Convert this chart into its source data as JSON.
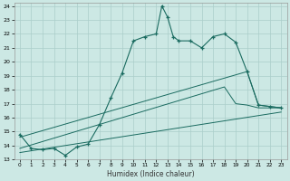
{
  "xlabel": "Humidex (Indice chaleur)",
  "bg_color": "#cce8e4",
  "grid_color": "#aaceca",
  "line_color": "#1a6b60",
  "xlim": [
    -0.5,
    23.5
  ],
  "ylim": [
    13,
    24.2
  ],
  "xtick_labels": [
    "0",
    "1",
    "2",
    "3",
    "4",
    "5",
    "6",
    "7",
    "8",
    "9",
    "10",
    "11",
    "12",
    "13",
    "14",
    "15",
    "16",
    "17",
    "18",
    "19",
    "20",
    "21",
    "22",
    "23"
  ],
  "xtick_vals": [
    0,
    1,
    2,
    3,
    4,
    5,
    6,
    7,
    8,
    9,
    10,
    11,
    12,
    13,
    14,
    15,
    16,
    17,
    18,
    19,
    20,
    21,
    22,
    23
  ],
  "ytick_vals": [
    13,
    14,
    15,
    16,
    17,
    18,
    19,
    20,
    21,
    22,
    23,
    24
  ],
  "curve_x": [
    0,
    1,
    2,
    3,
    4,
    5,
    6,
    7,
    8,
    9,
    10,
    11,
    12,
    12.5,
    13,
    13.5,
    14,
    15,
    16,
    17,
    18,
    19,
    20,
    21,
    22,
    23
  ],
  "curve_y": [
    14.8,
    13.8,
    13.7,
    13.8,
    13.3,
    13.9,
    14.1,
    15.5,
    17.4,
    19.2,
    21.5,
    21.8,
    22.0,
    24.0,
    23.2,
    21.8,
    21.5,
    21.5,
    21.0,
    21.8,
    22.0,
    21.4,
    19.3,
    16.9,
    16.8,
    16.7
  ],
  "curve_markers_x": [
    0,
    1,
    2,
    3,
    4,
    5,
    6,
    7,
    8,
    9,
    10,
    11,
    12,
    12.5,
    13,
    13.5,
    14,
    15,
    16,
    17,
    18,
    19,
    20,
    21,
    22,
    23
  ],
  "curve_markers_y": [
    14.8,
    13.8,
    13.7,
    13.8,
    13.3,
    13.9,
    14.1,
    15.5,
    17.4,
    19.2,
    21.5,
    21.8,
    22.0,
    24.0,
    23.2,
    21.8,
    21.5,
    21.5,
    21.0,
    21.8,
    22.0,
    21.4,
    19.3,
    16.9,
    16.8,
    16.7
  ],
  "line1_x": [
    0,
    20,
    21,
    22,
    23
  ],
  "line1_y": [
    14.6,
    19.3,
    16.9,
    16.8,
    16.7
  ],
  "line2_x": [
    0,
    18,
    19,
    20,
    21,
    22,
    23
  ],
  "line2_y": [
    13.8,
    18.2,
    17.0,
    16.9,
    16.7,
    16.7,
    16.7
  ],
  "line3_x": [
    0,
    23
  ],
  "line3_y": [
    13.5,
    16.4
  ]
}
